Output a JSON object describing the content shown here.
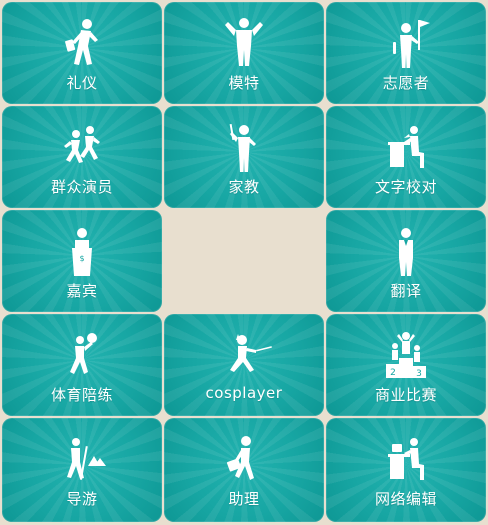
{
  "tiles": [
    {
      "id": "liyi",
      "label": "礼仪",
      "icon": "etiquette-figure-icon"
    },
    {
      "id": "mote",
      "label": "模特",
      "icon": "model-figure-icon"
    },
    {
      "id": "zhiyuanzhe",
      "label": "志愿者",
      "icon": "volunteer-flag-icon"
    },
    {
      "id": "qunzhongyanyuan",
      "label": "群众演员",
      "icon": "crowd-actors-icon"
    },
    {
      "id": "jiajiao",
      "label": "家教",
      "icon": "tutor-icon"
    },
    {
      "id": "wenzijiaodui",
      "label": "文字校对",
      "icon": "proofreader-desk-icon"
    },
    {
      "id": "jiabin",
      "label": "嘉宾",
      "icon": "guest-podium-icon"
    },
    {
      "id": "fanyi",
      "label": "翻译",
      "icon": "translator-figure-icon"
    },
    {
      "id": "tiyupeilian",
      "label": "体育陪练",
      "icon": "sports-sparring-icon"
    },
    {
      "id": "cosplayer",
      "label": "cosplayer",
      "icon": "fencer-icon"
    },
    {
      "id": "shangyebisai",
      "label": "商业比赛",
      "icon": "podium-winners-icon"
    },
    {
      "id": "daoyou",
      "label": "导游",
      "icon": "tour-guide-hiker-icon"
    },
    {
      "id": "zhuli",
      "label": "助理",
      "icon": "assistant-briefcase-icon"
    },
    {
      "id": "wangluobianji",
      "label": "网络编辑",
      "icon": "network-editor-desk-icon"
    }
  ],
  "podium_numbers": {
    "left": "2",
    "right": "3"
  }
}
